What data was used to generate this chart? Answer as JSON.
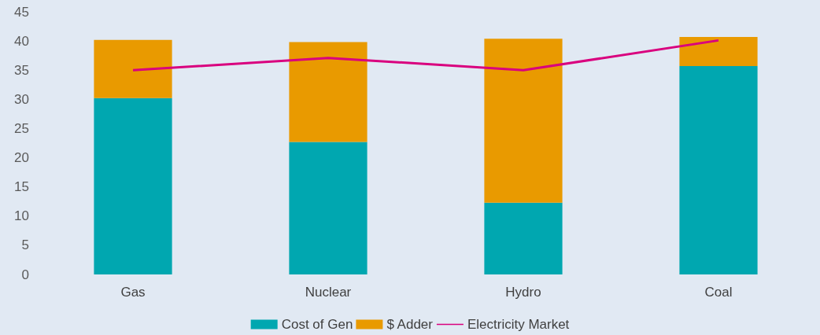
{
  "chart_data": {
    "type": "bar",
    "stacked": true,
    "categories": [
      "Gas",
      "Nuclear",
      "Hydro",
      "Coal"
    ],
    "series": [
      {
        "name": "Cost of Gen",
        "color": "#00a7b0",
        "values": [
          30.2,
          22.7,
          12.3,
          35.7
        ]
      },
      {
        "name": "$ Adder",
        "color": "#e99a00",
        "values": [
          10.0,
          17.1,
          28.1,
          5.0
        ]
      },
      {
        "name": "Electricity Market",
        "type": "line",
        "color": "#d9007e",
        "values": [
          35.0,
          37.1,
          35.0,
          40.1
        ]
      }
    ],
    "ylim": [
      0,
      45
    ],
    "yticks": [
      0,
      5,
      10,
      15,
      20,
      25,
      30,
      35,
      40,
      45
    ],
    "grid": false,
    "legend": "bottom",
    "marker": "none"
  }
}
